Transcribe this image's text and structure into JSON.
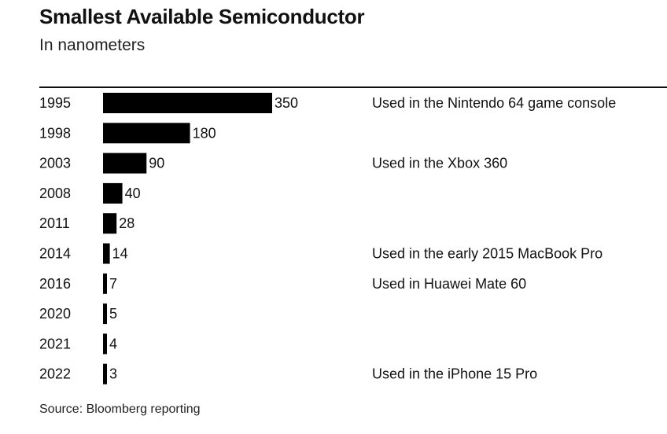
{
  "header": {
    "title": "Smallest Available Semiconductor",
    "subtitle": "In nanometers"
  },
  "footer": {
    "source": "Source: Bloomberg reporting"
  },
  "colors": {
    "bar": "#000000",
    "text": "#111111"
  },
  "chart_data": {
    "type": "bar",
    "orientation": "horizontal",
    "title": "Smallest Available Semiconductor",
    "subtitle": "In nanometers",
    "categories": [
      "1995",
      "1998",
      "2003",
      "2008",
      "2011",
      "2014",
      "2016",
      "2020",
      "2021",
      "2022"
    ],
    "values": [
      350,
      180,
      90,
      40,
      28,
      14,
      7,
      5,
      4,
      3
    ],
    "annotations": [
      "Used in the Nintendo 64 game console",
      "",
      "Used in the Xbox 360",
      "",
      "",
      "Used in the early 2015 MacBook Pro",
      "Used in Huawei Mate 60",
      "",
      "",
      "Used in the iPhone 15 Pro"
    ],
    "xlim": [
      0,
      350
    ],
    "grid": false,
    "legend": "none"
  }
}
